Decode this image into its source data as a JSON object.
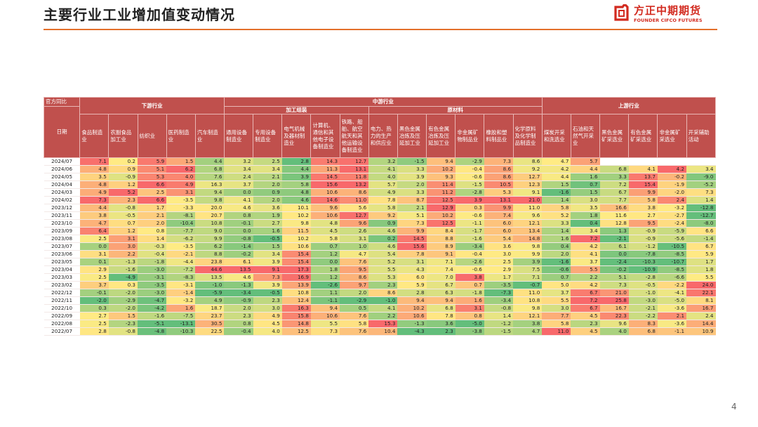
{
  "title": "主要行业工业增加值变动情况",
  "page_number": "4",
  "logo": {
    "cn": "方正中期期货",
    "en": "FOUNDER CIFCO FUTURES",
    "icon": "founder-logo-icon",
    "brand_color": "#d22a1f"
  },
  "accent_color": "#e36f2a",
  "header_color": "#c0504d",
  "table": {
    "corner_label": "官方同比",
    "date_label": "日期",
    "groups": {
      "downstream": "下游行业",
      "midstream": "中游行业",
      "upstream": "上游行业",
      "equipment": "加工组装",
      "raw_materials": "原材料"
    },
    "industries": [
      "食品制造业",
      "农副食品加工业",
      "纺织业",
      "医药制造业",
      "汽车制造业",
      "通用设备制造业",
      "专用设备制造业",
      "电气机械及器材制造业",
      "计算机、通信和其他电子设备制造业",
      "铁路、船舶、航空航天和其他运输设备制造业",
      "电力、热力的生产和供应业",
      "黑色金属冶炼及压延加工业",
      "有色金属冶炼及压延加工业",
      "非金属矿物制品业",
      "橡胶和塑料制品业",
      "化学原料及化学制品制造业",
      "煤炭开采和洗选业",
      "石油和天然气开采业",
      "黑色金属矿采选业",
      "有色金属矿采选业",
      "非金属矿采选业",
      "开采辅助活动"
    ],
    "rows": [
      {
        "date": "2024/07",
        "values": [
          "7.1",
          "0.2",
          "5.9",
          "1.5",
          "4.4",
          "3.2",
          "2.5",
          "2.8",
          "14.3",
          "12.7",
          "3.2",
          "-1.5",
          "9.4",
          "-2.9",
          "7.3",
          "8.6",
          "4.7",
          "5.7",
          "",
          "",
          "",
          ""
        ]
      },
      {
        "date": "2024/06",
        "values": [
          "4.8",
          "0.9",
          "5.1",
          "6.2",
          "6.8",
          "3.4",
          "3.4",
          "4.4",
          "11.3",
          "13.1",
          "4.1",
          "3.3",
          "10.2",
          "-0.4",
          "8.6",
          "9.2",
          "4.2",
          "4.4",
          "6.8",
          "4.1",
          "4.2",
          "3.4"
        ]
      },
      {
        "date": "2024/05",
        "values": [
          "3.5",
          "-0.9",
          "5.3",
          "4.0",
          "7.6",
          "2.4",
          "2.1",
          "3.9",
          "14.5",
          "11.8",
          "4.0",
          "3.9",
          "9.3",
          "-0.6",
          "8.6",
          "12.7",
          "4.4",
          "1.6",
          "3.3",
          "13.7",
          "-0.2",
          "-9.0"
        ]
      },
      {
        "date": "2024/04",
        "values": [
          "4.8",
          "1.2",
          "6.6",
          "4.9",
          "16.3",
          "3.7",
          "2.0",
          "5.8",
          "15.6",
          "13.2",
          "5.7",
          "2.0",
          "11.4",
          "-1.5",
          "10.5",
          "12.3",
          "1.5",
          "0.7",
          "7.2",
          "15.4",
          "-1.9",
          "-5.2"
        ]
      },
      {
        "date": "2024/03",
        "values": [
          "4.9",
          "5.2",
          "2.5",
          "3.1",
          "9.4",
          "0.0",
          "0.9",
          "4.8",
          "10.6",
          "8.6",
          "4.9",
          "3.3",
          "11.2",
          "-2.8",
          "5.3",
          "9.1",
          "-1.6",
          "1.5",
          "6.7",
          "9.9",
          "-2.0",
          "7.3"
        ]
      },
      {
        "date": "2024/02",
        "values": [
          "7.3",
          "2.3",
          "6.6",
          "-3.5",
          "9.8",
          "4.1",
          "2.0",
          "4.6",
          "14.6",
          "11.0",
          "7.8",
          "8.7",
          "12.5",
          "3.9",
          "13.1",
          "21.0",
          "1.4",
          "3.0",
          "7.7",
          "5.8",
          "2.4",
          "1.4"
        ]
      },
      {
        "date": "2023/12",
        "values": [
          "4.4",
          "-0.8",
          "1.7",
          "-3.3",
          "20.0",
          "4.6",
          "3.6",
          "10.1",
          "9.6",
          "5.6",
          "5.8",
          "2.1",
          "12.9",
          "0.3",
          "9.9",
          "11.0",
          "5.8",
          "3.5",
          "16.6",
          "3.8",
          "-3.2",
          "-12.8"
        ]
      },
      {
        "date": "2023/11",
        "values": [
          "3.8",
          "-0.5",
          "2.1",
          "-8.1",
          "20.7",
          "0.8",
          "1.9",
          "10.2",
          "10.6",
          "12.7",
          "9.2",
          "5.1",
          "10.2",
          "-0.6",
          "7.4",
          "9.6",
          "5.2",
          "1.8",
          "11.6",
          "2.7",
          "-2.7",
          "-12.7"
        ]
      },
      {
        "date": "2023/10",
        "values": [
          "4.7",
          "0.7",
          "2.0",
          "-10.4",
          "10.8",
          "-0.1",
          "2.7",
          "9.8",
          "4.8",
          "9.6",
          "0.9",
          "7.3",
          "12.5",
          "-1.1",
          "6.0",
          "12.1",
          "3.3",
          "0.4",
          "12.8",
          "9.5",
          "-2.4",
          "-8.0"
        ]
      },
      {
        "date": "2023/09",
        "values": [
          "6.4",
          "1.2",
          "0.8",
          "-7.7",
          "9.0",
          "0.0",
          "1.6",
          "11.5",
          "4.5",
          "2.6",
          "4.6",
          "9.9",
          "8.4",
          "-1.7",
          "6.0",
          "13.4",
          "1.4",
          "3.4",
          "1.3",
          "-0.9",
          "-5.9",
          "6.6"
        ]
      },
      {
        "date": "2023/08",
        "values": [
          "2.5",
          "3.1",
          "1.4",
          "-6.2",
          "9.9",
          "-0.8",
          "-0.5",
          "10.2",
          "5.8",
          "3.1",
          "0.2",
          "14.5",
          "8.8",
          "-1.6",
          "5.4",
          "14.8",
          "1.6",
          "7.2",
          "-2.1",
          "-0.9",
          "-5.6",
          "-1.4"
        ]
      },
      {
        "date": "2023/07",
        "values": [
          "0.0",
          "3.0",
          "-0.3",
          "-3.5",
          "6.2",
          "-1.4",
          "1.5",
          "10.6",
          "0.7",
          "1.0",
          "4.6",
          "15.6",
          "8.9",
          "-3.4",
          "3.6",
          "9.8",
          "0.4",
          "4.2",
          "6.1",
          "-1.2",
          "-10.5",
          "6.7"
        ]
      },
      {
        "date": "2023/06",
        "values": [
          "3.1",
          "2.2",
          "-0.4",
          "-2.1",
          "8.8",
          "-0.2",
          "3.4",
          "15.4",
          "1.2",
          "4.7",
          "5.4",
          "7.8",
          "9.1",
          "-0.4",
          "3.0",
          "9.9",
          "2.0",
          "4.1",
          "0.0",
          "-7.8",
          "-8.5",
          "5.9"
        ]
      },
      {
        "date": "2023/05",
        "values": [
          "0.1",
          "-1.3",
          "-1.8",
          "-4.4",
          "23.8",
          "6.1",
          "3.9",
          "15.4",
          "0.0",
          "7.6",
          "5.2",
          "3.1",
          "7.1",
          "-2.6",
          "2.5",
          "3.9",
          "-1.6",
          "3.7",
          "-2.4",
          "-10.3",
          "-10.7",
          "1.7"
        ]
      },
      {
        "date": "2023/04",
        "values": [
          "2.9",
          "-1.6",
          "-3.0",
          "-7.2",
          "44.6",
          "13.5",
          "9.1",
          "17.3",
          "1.8",
          "9.5",
          "5.5",
          "4.3",
          "7.4",
          "-0.6",
          "2.9",
          "7.5",
          "-0.6",
          "5.5",
          "-0.2",
          "-10.9",
          "-8.5",
          "1.8"
        ]
      },
      {
        "date": "2023/03",
        "values": [
          "2.5",
          "-4.9",
          "-3.1",
          "-8.3",
          "13.5",
          "4.6",
          "7.3",
          "16.9",
          "1.2",
          "8.6",
          "5.3",
          "6.0",
          "7.0",
          "3.8",
          "1.7",
          "7.1",
          "0.7",
          "2.2",
          "5.1",
          "-2.8",
          "-6.6",
          "5.5"
        ]
      },
      {
        "date": "2023/02",
        "values": [
          "3.7",
          "0.3",
          "-3.5",
          "-3.1",
          "-1.0",
          "-1.3",
          "3.9",
          "13.9",
          "-2.6",
          "9.7",
          "2.3",
          "5.9",
          "6.7",
          "0.7",
          "-3.5",
          "-0.7",
          "5.0",
          "4.2",
          "7.3",
          "-0.5",
          "-2.2",
          "24.0"
        ]
      },
      {
        "date": "2022/12",
        "values": [
          "-0.1",
          "-2.0",
          "-3.0",
          "-1.4",
          "-5.9",
          "-3.4",
          "-0.5",
          "10.8",
          "1.1",
          "2.0",
          "8.6",
          "2.8",
          "6.3",
          "-1.8",
          "-7.3",
          "11.0",
          "3.7",
          "6.7",
          "21.0",
          "-1.0",
          "-4.1",
          "22.1"
        ]
      },
      {
        "date": "2022/11",
        "values": [
          "-2.0",
          "-2.9",
          "-4.7",
          "-3.2",
          "4.9",
          "-0.9",
          "2.3",
          "12.4",
          "-1.1",
          "-2.9",
          "-1.0",
          "9.4",
          "9.4",
          "1.6",
          "-3.4",
          "10.8",
          "5.5",
          "7.2",
          "25.8",
          "-3.0",
          "-5.0",
          "8.1"
        ]
      },
      {
        "date": "2022/10",
        "values": [
          "0.3",
          "-2.0",
          "-4.2",
          "1.6",
          "18.7",
          "2.0",
          "3.0",
          "16.3",
          "9.4",
          "0.5",
          "4.1",
          "10.2",
          "6.8",
          "3.1",
          "-0.8",
          "9.8",
          "3.0",
          "6.7",
          "16.7",
          "-2.1",
          "-3.6",
          "16.7"
        ]
      },
      {
        "date": "2022/09",
        "values": [
          "2.7",
          "1.5",
          "-1.6",
          "-7.5",
          "23.7",
          "2.3",
          "4.9",
          "15.8",
          "10.6",
          "7.6",
          "2.2",
          "10.6",
          "7.8",
          "0.8",
          "1.4",
          "12.1",
          "7.7",
          "4.5",
          "22.3",
          "-2.2",
          "2.1",
          "2.4"
        ]
      },
      {
        "date": "2022/08",
        "values": [
          "2.5",
          "-2.3",
          "-5.1",
          "-13.1",
          "30.5",
          "0.8",
          "4.5",
          "14.8",
          "5.5",
          "5.8",
          "15.3",
          "-1.3",
          "3.6",
          "-5.0",
          "-1.2",
          "3.8",
          "5.8",
          "2.3",
          "9.6",
          "8.3",
          "-3.6",
          "14.4"
        ]
      },
      {
        "date": "2022/07",
        "values": [
          "2.8",
          "-0.8",
          "-4.8",
          "-10.3",
          "22.5",
          "-0.4",
          "4.0",
          "12.5",
          "7.3",
          "7.6",
          "10.4",
          "-4.3",
          "2.3",
          "-3.8",
          "-1.5",
          "4.7",
          "11.0",
          "4.5",
          "4.0",
          "6.8",
          "-1.1",
          "10.9"
        ]
      }
    ]
  }
}
